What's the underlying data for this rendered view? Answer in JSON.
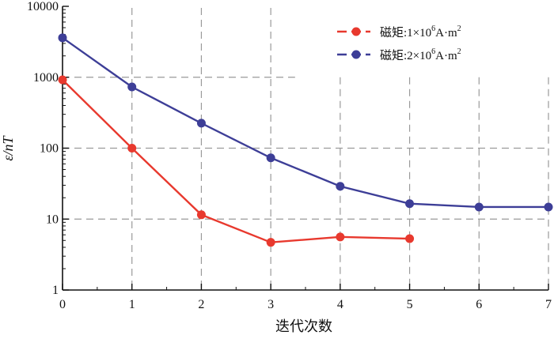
{
  "chart_data": {
    "type": "line",
    "y_scale": "log",
    "xlabel": "迭代次数",
    "ylabel": "ε/nT",
    "xlim": [
      0,
      7
    ],
    "ylim": [
      1,
      10000
    ],
    "x_ticks": [
      "0",
      "1",
      "2",
      "3",
      "4",
      "5",
      "6",
      "7"
    ],
    "y_ticks": [
      "1",
      "10",
      "100",
      "1000",
      "10000"
    ],
    "grid": "dashed",
    "legend_position": "top-right",
    "series": [
      {
        "name": "磁矩:1×10⁶A·m²",
        "name_prefix": "磁矩:1×10",
        "name_exp": "6",
        "name_unit": "A·m",
        "name_unit_exp": "2",
        "color": "#e8392e",
        "x": [
          0,
          1,
          2,
          3,
          4,
          5
        ],
        "values": [
          920,
          100,
          11.5,
          4.7,
          5.6,
          5.3
        ]
      },
      {
        "name": "磁矩:2×10⁶A·m²",
        "name_prefix": "磁矩:2×10",
        "name_exp": "6",
        "name_unit": "A·m",
        "name_unit_exp": "2",
        "color": "#3d3e97",
        "x": [
          0,
          1,
          2,
          3,
          4,
          5,
          6,
          7
        ],
        "values": [
          3600,
          730,
          225,
          73,
          29,
          16.5,
          14.8,
          14.8
        ]
      }
    ]
  }
}
